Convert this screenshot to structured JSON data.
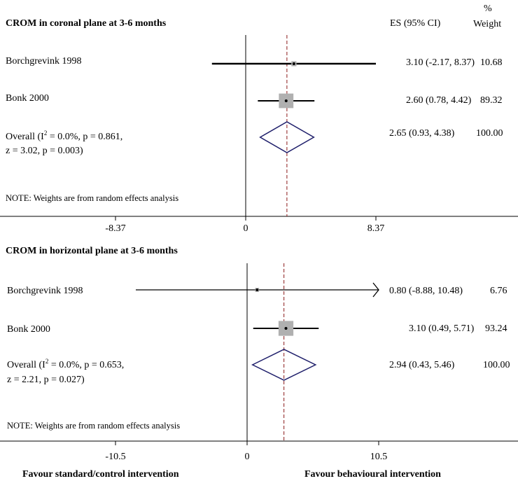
{
  "chart_data": [
    {
      "type": "forest",
      "title": "CROM in coronal plane at 3-6 months",
      "es_header": "ES (95% CI)",
      "weight_header_pct": "%",
      "weight_header": "Weight",
      "xticks": [
        "-8.37",
        "0",
        "8.37"
      ],
      "xlim": [
        -8.37,
        8.37
      ],
      "note": "NOTE: Weights are from random effects analysis",
      "studies": [
        {
          "label": "Borchgrevink 1998",
          "es": 3.1,
          "lo": -2.17,
          "hi": 8.37,
          "weight": 10.68,
          "ci_text": "3.10 (-2.17, 8.37)",
          "weight_text": "10.68"
        },
        {
          "label": "Bonk 2000",
          "es": 2.6,
          "lo": 0.78,
          "hi": 4.42,
          "weight": 89.32,
          "ci_text": "2.60 (0.78, 4.42)",
          "weight_text": "89.32"
        }
      ],
      "overall": {
        "label_line1": "Overall (I",
        "label_sup": "2",
        "label_line1b": " = 0.0%, p = 0.861,",
        "label_line2": "z = 3.02, p = 0.003)",
        "es": 2.65,
        "lo": 0.93,
        "hi": 4.38,
        "ci_text": "2.65 (0.93, 4.38)",
        "weight_text": "100.00"
      }
    },
    {
      "type": "forest",
      "title": "CROM in horizontal plane at 3-6 months",
      "xticks": [
        "-10.5",
        "0",
        "10.5"
      ],
      "xlim": [
        -10.5,
        10.5
      ],
      "note": "NOTE: Weights are from random effects analysis",
      "studies": [
        {
          "label": "Borchgrevink 1998",
          "es": 0.8,
          "lo": -8.88,
          "hi": 10.48,
          "weight": 6.76,
          "ci_text": "0.80 (-8.88, 10.48)",
          "weight_text": "6.76",
          "arrow_right": true
        },
        {
          "label": "Bonk 2000",
          "es": 3.1,
          "lo": 0.49,
          "hi": 5.71,
          "weight": 93.24,
          "ci_text": "3.10 (0.49, 5.71)",
          "weight_text": "93.24"
        }
      ],
      "overall": {
        "label_line1": "Overall (I",
        "label_sup": "2",
        "label_line1b": " = 0.0%, p = 0.653,",
        "label_line2": "z = 2.21, p = 0.027)",
        "es": 2.94,
        "lo": 0.43,
        "hi": 5.46,
        "ci_text": "2.94 (0.43, 5.46)",
        "weight_text": "100.00"
      }
    }
  ],
  "footer": {
    "left": "Favour standard/control intervention",
    "right": "Favour behavioural intervention"
  },
  "colors": {
    "diamond": "#1f1f6b",
    "overall_line": "#8b1a1a",
    "box": "#b0b0b0",
    "axis": "#000000"
  }
}
